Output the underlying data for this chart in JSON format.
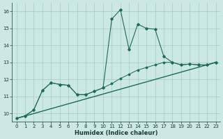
{
  "xlabel": "Humidex (Indice chaleur)",
  "background_color": "#cce8e4",
  "grid_color": "#aad0cc",
  "line_color": "#1a6b5a",
  "xlim": [
    -0.5,
    23.5
  ],
  "ylim": [
    9.5,
    16.5
  ],
  "yticks": [
    10,
    11,
    12,
    13,
    14,
    15,
    16
  ],
  "xticks": [
    0,
    1,
    2,
    3,
    4,
    5,
    6,
    7,
    8,
    9,
    10,
    11,
    12,
    13,
    14,
    15,
    16,
    17,
    18,
    19,
    20,
    21,
    22,
    23
  ],
  "series_main_x": [
    0,
    1,
    2,
    3,
    4,
    5,
    6,
    7,
    8,
    9,
    10,
    11,
    12,
    13,
    14,
    15,
    16,
    17,
    18,
    19,
    20,
    21,
    22,
    23
  ],
  "series_main_y": [
    9.7,
    9.85,
    10.2,
    11.35,
    11.8,
    11.7,
    11.65,
    11.1,
    11.1,
    11.3,
    11.5,
    15.55,
    16.1,
    13.75,
    15.25,
    15.0,
    14.95,
    13.35,
    13.0,
    12.85,
    12.9,
    12.85,
    12.85,
    13.0
  ],
  "series_lower_x": [
    0,
    1,
    2,
    3,
    4,
    5,
    6,
    7,
    8,
    9,
    10,
    11,
    12,
    13,
    14,
    15,
    16,
    17,
    18,
    19,
    20,
    21,
    22,
    23
  ],
  "series_lower_y": [
    9.7,
    9.85,
    10.2,
    11.35,
    11.8,
    11.7,
    11.65,
    11.1,
    11.1,
    11.3,
    11.5,
    11.75,
    12.05,
    12.3,
    12.55,
    12.7,
    12.85,
    13.0,
    13.0,
    12.85,
    12.9,
    12.85,
    12.85,
    13.0
  ],
  "trend_x": [
    0,
    23
  ],
  "trend_y": [
    9.7,
    13.0
  ]
}
